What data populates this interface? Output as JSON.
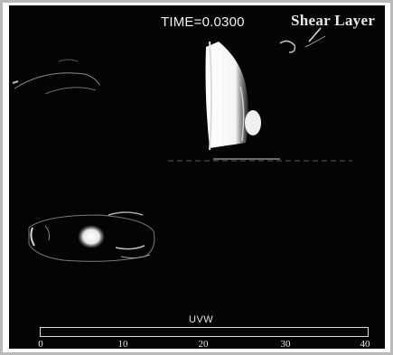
{
  "overlay": {
    "time_label": "TIME=0.0300",
    "annotation_label": "Shear Layer"
  },
  "legend": {
    "title": "UVW",
    "ticks": [
      "0",
      "10",
      "20",
      "30",
      "40"
    ]
  },
  "colors": {
    "background": "#040404",
    "frame": "#b9b9b9",
    "text": "#f2f2f2"
  }
}
